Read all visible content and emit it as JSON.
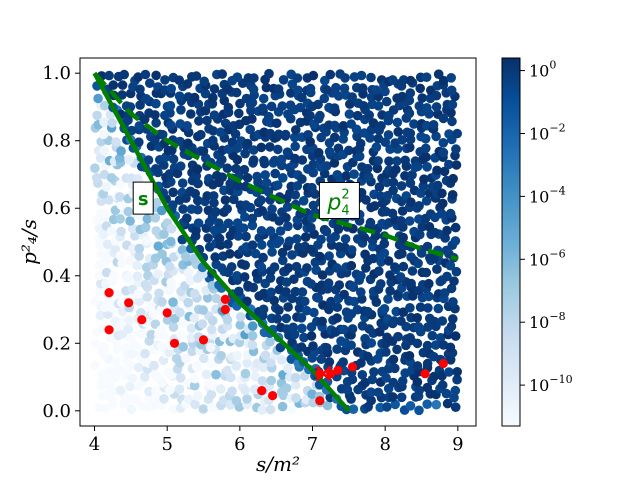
{
  "chart_data": {
    "type": "scatter",
    "title": "",
    "xlabel": "s/m²",
    "ylabel": "p²₄/s",
    "xlim": [
      3.8,
      9.25
    ],
    "ylim": [
      -0.045,
      1.045
    ],
    "x_ticks": [
      4,
      5,
      6,
      7,
      8,
      9
    ],
    "y_ticks": [
      0.0,
      0.2,
      0.4,
      0.6,
      0.8,
      1.0
    ],
    "x_tick_labels": [
      "4",
      "5",
      "6",
      "7",
      "8",
      "9"
    ],
    "y_tick_labels": [
      "0.0",
      "0.2",
      "0.4",
      "0.6",
      "0.8",
      "1.0"
    ],
    "grid": false,
    "colorbar": {
      "scale": "log",
      "colormap": "Blues",
      "log_min": -11.3,
      "log_max": 0.4,
      "ticks": [
        0,
        -2,
        -4,
        -6,
        -8,
        -10
      ],
      "tick_labels": [
        {
          "base": "10",
          "exp": "0"
        },
        {
          "base": "10",
          "exp": "−2"
        },
        {
          "base": "10",
          "exp": "−4"
        },
        {
          "base": "10",
          "exp": "−6"
        },
        {
          "base": "10",
          "exp": "−8"
        },
        {
          "base": "10",
          "exp": "−10"
        }
      ]
    },
    "curves": [
      {
        "id": "s-curve",
        "color": "#008000",
        "style": "solid",
        "x": [
          4.0,
          4.5,
          5.0,
          5.5,
          6.0,
          6.5,
          7.0,
          7.5
        ],
        "y": [
          1.0,
          0.8,
          0.6,
          0.44,
          0.32,
          0.22,
          0.12,
          0.0
        ]
      },
      {
        "id": "p4-curve",
        "color": "#008000",
        "style": "dashed",
        "x": [
          4.0,
          4.5,
          5.0,
          5.5,
          6.0,
          6.5,
          7.0,
          7.5,
          8.0,
          8.5,
          9.0
        ],
        "y": [
          1.0,
          0.88,
          0.8,
          0.74,
          0.68,
          0.63,
          0.58,
          0.55,
          0.52,
          0.48,
          0.45
        ]
      }
    ],
    "annotations": [
      {
        "id": "s",
        "text": "s",
        "x": 4.67,
        "y": 0.63
      },
      {
        "id": "p4sq",
        "text": "p",
        "sup": "2",
        "sub": "4",
        "x": 7.37,
        "y": 0.62
      }
    ],
    "red_points": {
      "color": "#ff0000",
      "points": [
        [
          4.2,
          0.35
        ],
        [
          4.2,
          0.24
        ],
        [
          4.47,
          0.32
        ],
        [
          4.65,
          0.27
        ],
        [
          5.0,
          0.29
        ],
        [
          5.1,
          0.2
        ],
        [
          5.5,
          0.21
        ],
        [
          5.8,
          0.33
        ],
        [
          5.8,
          0.3
        ],
        [
          6.3,
          0.06
        ],
        [
          6.45,
          0.045
        ],
        [
          7.1,
          0.11
        ],
        [
          7.25,
          0.11
        ],
        [
          7.1,
          0.03
        ],
        [
          7.35,
          0.12
        ],
        [
          7.55,
          0.13
        ],
        [
          8.55,
          0.11
        ],
        [
          8.8,
          0.14
        ]
      ]
    },
    "cross_marker": {
      "x": 7.15,
      "y": 0.11,
      "color": "#ff0000"
    },
    "scatter_grid": {
      "x_range": [
        4.0,
        9.0
      ],
      "y_range": [
        0.0,
        1.0
      ],
      "nx": 44,
      "ny": 38,
      "seed": 7
    }
  }
}
